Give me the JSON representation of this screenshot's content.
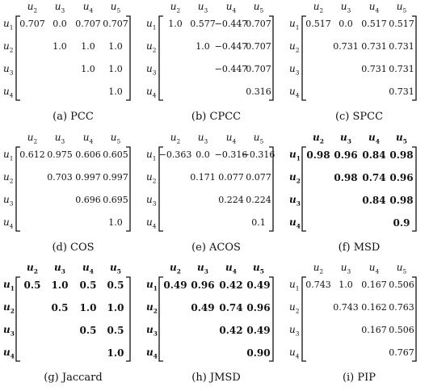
{
  "panels": [
    {
      "caption": "(a) PCC",
      "columns": [
        "u2",
        "u3",
        "u4",
        "u5"
      ],
      "rows": [
        "u1",
        "u2",
        "u3",
        "u4"
      ],
      "cells": [
        [
          "0.707",
          "0.0",
          "0.707",
          "0.707"
        ],
        [
          "",
          "1.0",
          "1.0",
          "1.0"
        ],
        [
          "",
          "",
          "1.0",
          "1.0"
        ],
        [
          "",
          "",
          "",
          "1.0"
        ]
      ],
      "style": "serif"
    },
    {
      "caption": "(b) CPCC",
      "columns": [
        "u2",
        "u3",
        "u4",
        "u5"
      ],
      "rows": [
        "u1",
        "u2",
        "u3",
        "u4"
      ],
      "cells": [
        [
          "1.0",
          "0.577",
          "−0.447",
          "0.707"
        ],
        [
          "",
          "1.0",
          "−0.447",
          "0.707"
        ],
        [
          "",
          "",
          "−0.447",
          "0.707"
        ],
        [
          "",
          "",
          "",
          "0.316"
        ]
      ],
      "style": "serif"
    },
    {
      "caption": "(c) SPCC",
      "columns": [
        "u2",
        "u3",
        "u4",
        "u5"
      ],
      "rows": [
        "u1",
        "u2",
        "u3",
        "u4"
      ],
      "cells": [
        [
          "0.517",
          "0.0",
          "0.517",
          "0.517"
        ],
        [
          "",
          "0.731",
          "0.731",
          "0.731"
        ],
        [
          "",
          "",
          "0.731",
          "0.731"
        ],
        [
          "",
          "",
          "",
          "0.731"
        ]
      ],
      "style": "serif"
    },
    {
      "caption": "(d) COS",
      "columns": [
        "u2",
        "u3",
        "u4",
        "u5"
      ],
      "rows": [
        "u1",
        "u2",
        "u3",
        "u4"
      ],
      "cells": [
        [
          "0.612",
          "0.975",
          "0.606",
          "0.605"
        ],
        [
          "",
          "0.703",
          "0.997",
          "0.997"
        ],
        [
          "",
          "",
          "0.696",
          "0.695"
        ],
        [
          "",
          "",
          "",
          "1.0"
        ]
      ],
      "style": "serif"
    },
    {
      "caption": "(e) ACOS",
      "columns": [
        "u2",
        "u3",
        "u4",
        "u5"
      ],
      "rows": [
        "u1",
        "u2",
        "u3",
        "u4"
      ],
      "cells": [
        [
          "−0.363",
          "0.0",
          "−0.316",
          "−0.316"
        ],
        [
          "",
          "0.171",
          "0.077",
          "0.077"
        ],
        [
          "",
          "",
          "0.224",
          "0.224"
        ],
        [
          "",
          "",
          "",
          "0.1"
        ]
      ],
      "style": "serif"
    },
    {
      "caption": "(f) MSD",
      "columns": [
        "u2",
        "u3",
        "u4",
        "u5"
      ],
      "rows": [
        "u1",
        "u2",
        "u3",
        "u4"
      ],
      "cells": [
        [
          "0.98",
          "0.96",
          "0.84",
          "0.98"
        ],
        [
          "",
          "0.98",
          "0.74",
          "0.96"
        ],
        [
          "",
          "",
          "0.84",
          "0.98"
        ],
        [
          "",
          "",
          "",
          "0.9"
        ]
      ],
      "style": "bold"
    },
    {
      "caption": "(g) Jaccard",
      "columns": [
        "u2",
        "u3",
        "u4",
        "u5"
      ],
      "rows": [
        "u1",
        "u2",
        "u3",
        "u4"
      ],
      "cells": [
        [
          "0.5",
          "1.0",
          "0.5",
          "0.5"
        ],
        [
          "",
          "0.5",
          "1.0",
          "1.0"
        ],
        [
          "",
          "",
          "0.5",
          "0.5"
        ],
        [
          "",
          "",
          "",
          "1.0"
        ]
      ],
      "style": "bold"
    },
    {
      "caption": "(h) JMSD",
      "columns": [
        "u2",
        "u3",
        "u4",
        "u5"
      ],
      "rows": [
        "u1",
        "u2",
        "u3",
        "u4"
      ],
      "cells": [
        [
          "0.49",
          "0.96",
          "0.42",
          "0.49"
        ],
        [
          "",
          "0.49",
          "0.74",
          "0.96"
        ],
        [
          "",
          "",
          "0.42",
          "0.49"
        ],
        [
          "",
          "",
          "",
          "0.90"
        ]
      ],
      "style": "bold"
    },
    {
      "caption": "(i) PIP",
      "columns": [
        "u2",
        "u3",
        "u4",
        "u5"
      ],
      "rows": [
        "u1",
        "u2",
        "u3",
        "u4"
      ],
      "cells": [
        [
          "0.743",
          "1.0",
          "0.167",
          "0.506"
        ],
        [
          "",
          "0.743",
          "0.162",
          "0.763"
        ],
        [
          "",
          "",
          "0.167",
          "0.506"
        ],
        [
          "",
          "",
          "",
          "0.767"
        ]
      ],
      "style": "serif"
    }
  ]
}
